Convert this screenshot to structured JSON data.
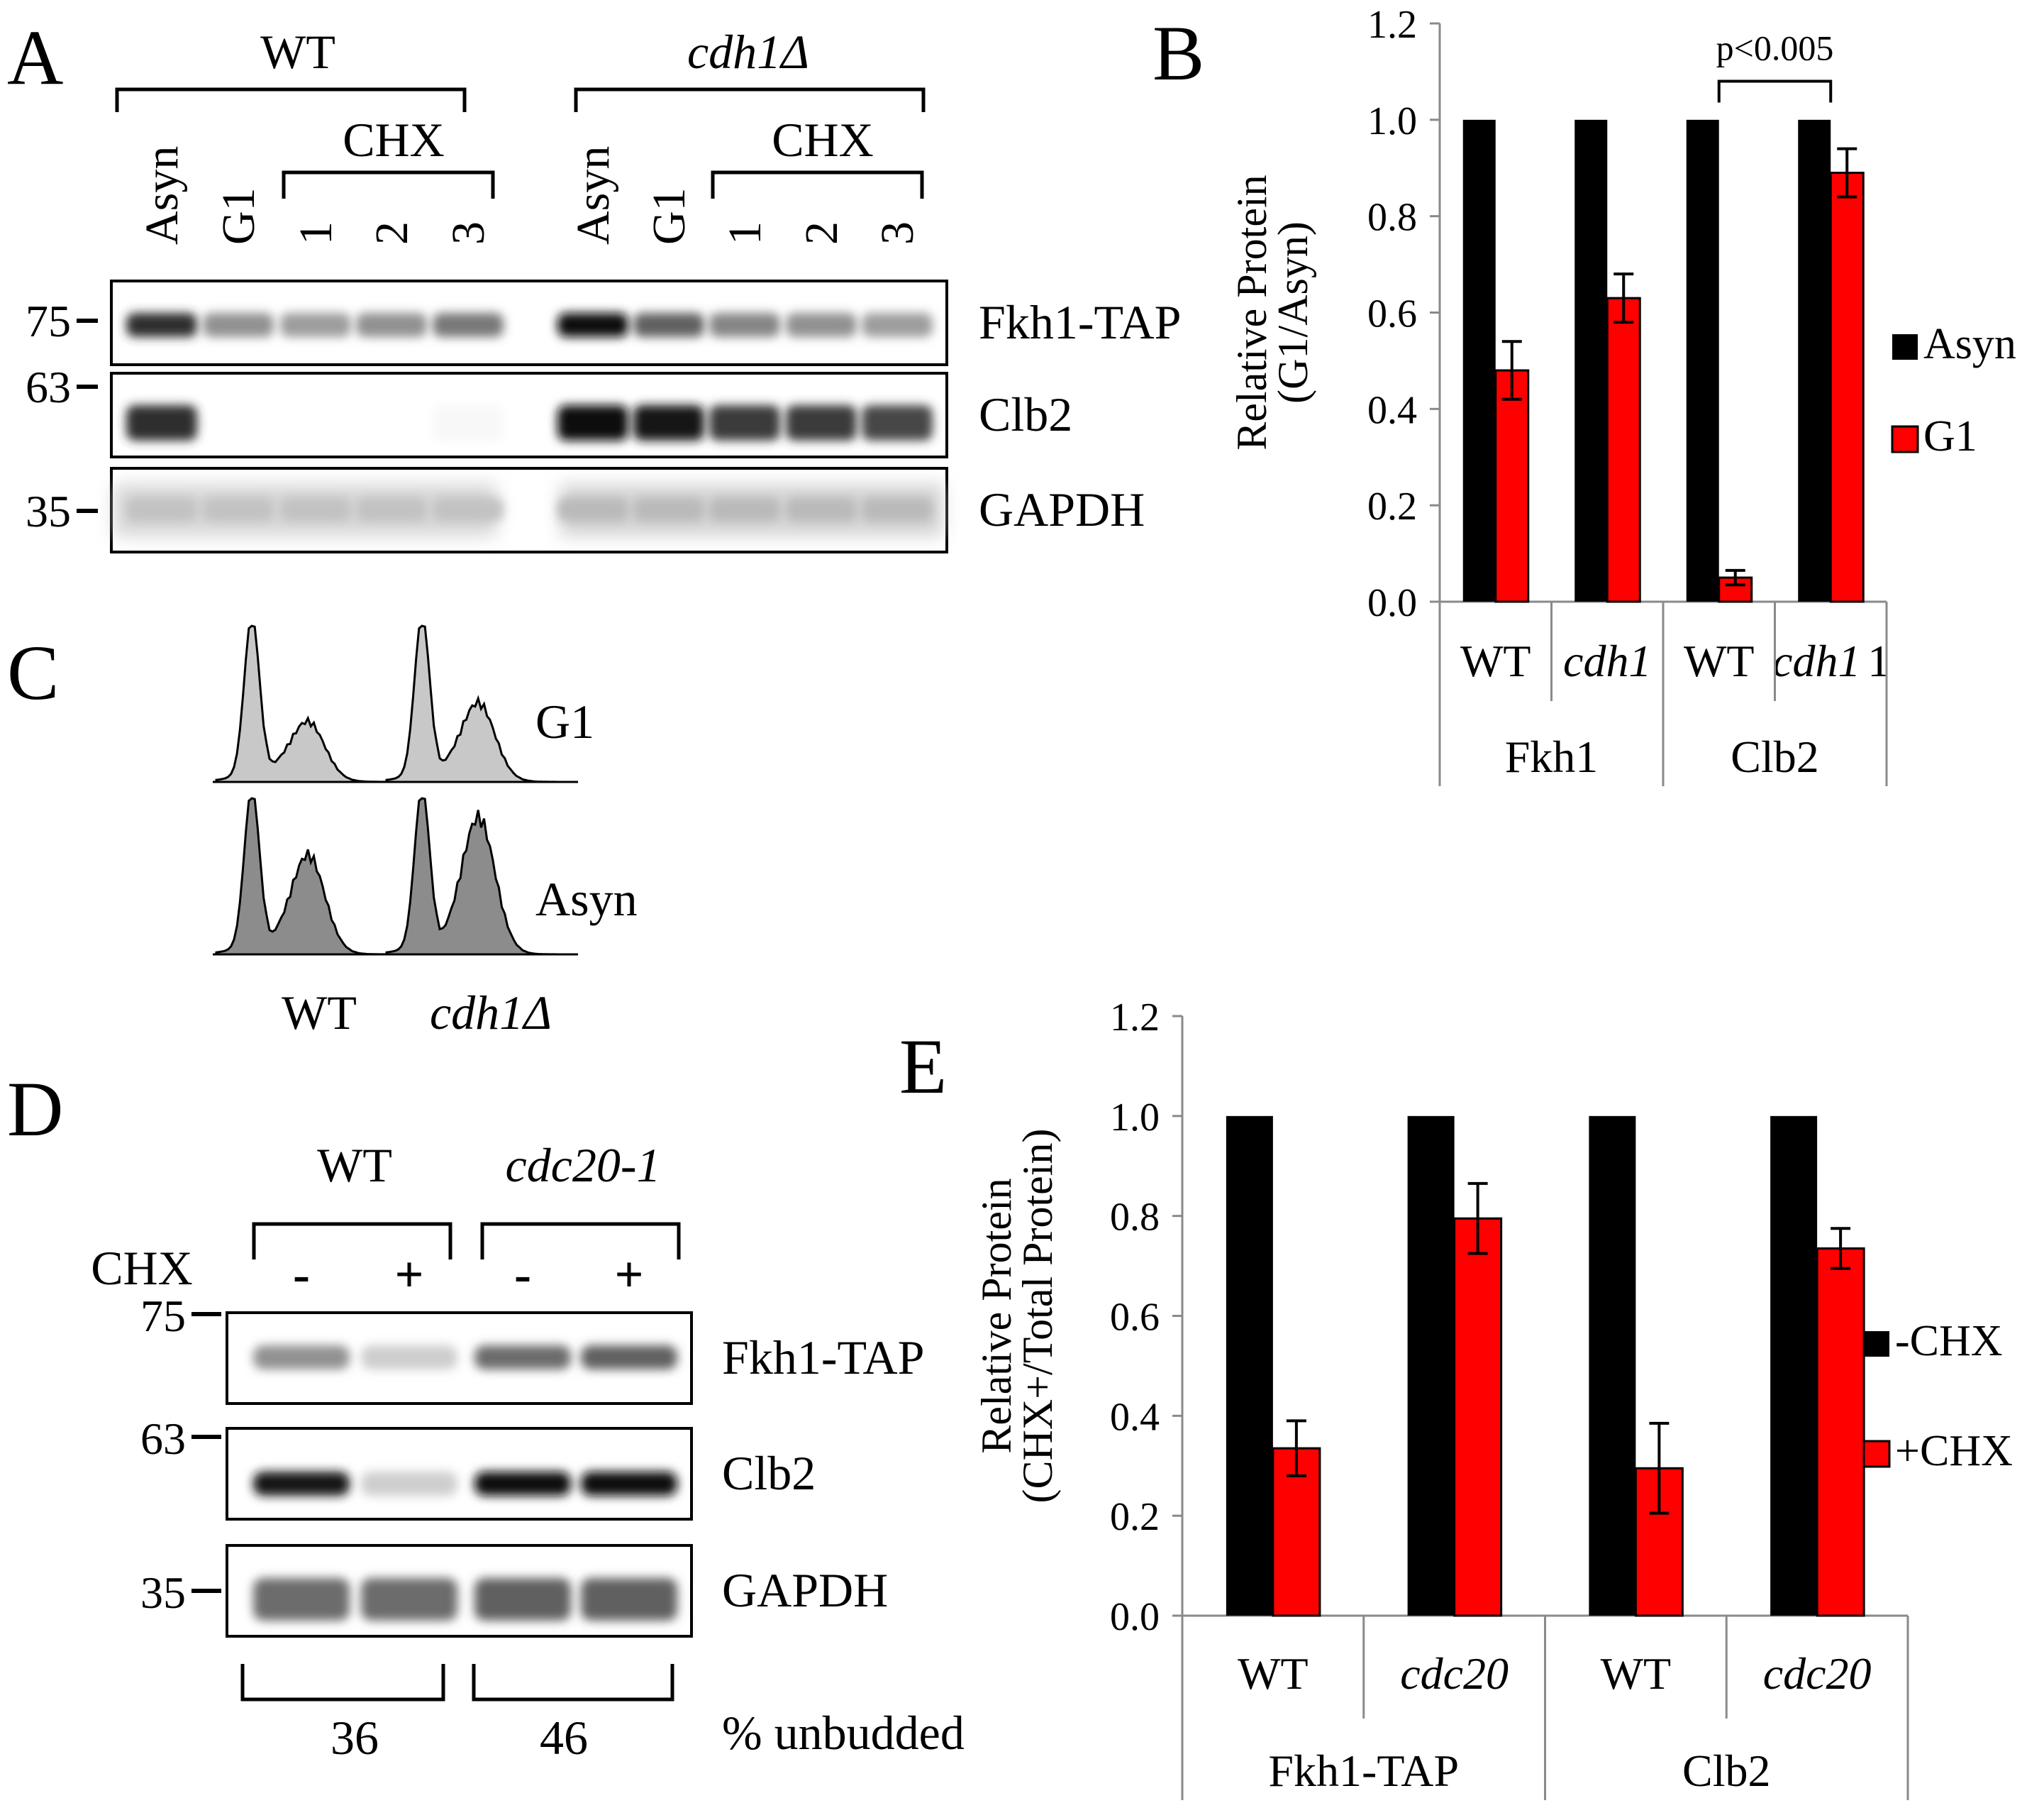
{
  "panels": {
    "A": {
      "label": "A",
      "groups": [
        {
          "name": "WT",
          "italic": false,
          "cond_label": "CHX",
          "lanes": [
            "Asyn",
            "G1",
            "1",
            "2",
            "3"
          ]
        },
        {
          "name": "cdh1Δ",
          "italic": true,
          "cond_label": "CHX",
          "lanes": [
            "Asyn",
            "G1",
            "1",
            "2",
            "3"
          ]
        }
      ],
      "markers": [
        "75",
        "63",
        "35"
      ],
      "blots": [
        {
          "name": "Fkh1-TAP",
          "intensity": [
            0.85,
            0.45,
            0.4,
            0.45,
            0.55,
            1.0,
            0.65,
            0.5,
            0.45,
            0.4
          ]
        },
        {
          "name": "Clb2",
          "intensity": [
            0.85,
            0.0,
            0.0,
            0.0,
            0.03,
            1.0,
            0.95,
            0.8,
            0.8,
            0.75
          ]
        },
        {
          "name": "GAPDH",
          "intensity": [
            0.25,
            0.25,
            0.25,
            0.25,
            0.25,
            0.28,
            0.28,
            0.28,
            0.28,
            0.28
          ]
        }
      ]
    },
    "C": {
      "label": "C",
      "rows": [
        "G1",
        "Asyn"
      ],
      "columns": [
        {
          "name": "WT",
          "italic": false
        },
        {
          "name": "cdh1Δ",
          "italic": true
        }
      ],
      "colors": {
        "G1": "#c8c8c8",
        "Asyn": "#8c8c8c"
      }
    },
    "D": {
      "label": "D",
      "groups": [
        {
          "name": "WT",
          "italic": false,
          "lanes": [
            "-",
            "+"
          ],
          "unbudded": "36"
        },
        {
          "name": "cdc20-1",
          "italic": true,
          "lanes": [
            "-",
            "+"
          ],
          "unbudded": "46"
        }
      ],
      "row_label": "CHX",
      "markers": [
        "75",
        "63",
        "35"
      ],
      "blots": [
        {
          "name": "Fkh1-TAP",
          "intensity": [
            0.45,
            0.2,
            0.6,
            0.65
          ]
        },
        {
          "name": "Clb2",
          "intensity": [
            0.95,
            0.2,
            1.0,
            1.0
          ]
        },
        {
          "name": "GAPDH",
          "intensity": [
            0.6,
            0.6,
            0.65,
            0.65
          ]
        }
      ],
      "footer_label": "% unbudded"
    }
  },
  "chart_data": [
    {
      "panel": "B",
      "type": "bar",
      "ylabel": [
        "Relative Protein",
        "(G1/Asyn)"
      ],
      "ylim": [
        0,
        1.2
      ],
      "yticks": [
        "0.0",
        "0.2",
        "0.4",
        "0.6",
        "0.8",
        "1.0",
        "1.2"
      ],
      "categories": [
        {
          "label": "WT",
          "italic": false
        },
        {
          "label": "cdh1",
          "italic": true
        },
        {
          "label": "WT",
          "italic": false
        },
        {
          "label": "cdh1",
          "italic": true,
          "suffix": "1"
        }
      ],
      "groups": [
        "Fkh1",
        "Clb2"
      ],
      "series": [
        {
          "name": "Asyn",
          "color": "#000000",
          "values": [
            1.0,
            1.0,
            1.0,
            1.0
          ]
        },
        {
          "name": "G1",
          "color": "#ff0000",
          "values": [
            0.48,
            0.63,
            0.05,
            0.89
          ],
          "err": [
            0.06,
            0.05,
            0.015,
            0.05
          ]
        }
      ],
      "annotation": {
        "text": "p<0.005"
      },
      "legend": "right"
    },
    {
      "panel": "E",
      "type": "bar",
      "ylabel": [
        "Relative Protein",
        "(CHX+/Total Protein)"
      ],
      "ylim": [
        0,
        1.2
      ],
      "yticks": [
        "0.0",
        "0.2",
        "0.4",
        "0.6",
        "0.8",
        "1.0",
        "1.2"
      ],
      "categories": [
        {
          "label": "WT",
          "italic": false
        },
        {
          "label": "cdc20",
          "italic": true
        },
        {
          "label": "WT",
          "italic": false
        },
        {
          "label": "cdc20",
          "italic": true
        }
      ],
      "groups": [
        "Fkh1-TAP",
        "Clb2"
      ],
      "series": [
        {
          "name": "-CHX",
          "color": "#000000",
          "values": [
            1.0,
            1.0,
            1.0,
            1.0
          ]
        },
        {
          "name": "+CHX",
          "color": "#ff0000",
          "values": [
            0.335,
            0.795,
            0.295,
            0.735
          ],
          "err": [
            0.055,
            0.07,
            0.09,
            0.04
          ]
        }
      ],
      "legend": "right"
    }
  ]
}
